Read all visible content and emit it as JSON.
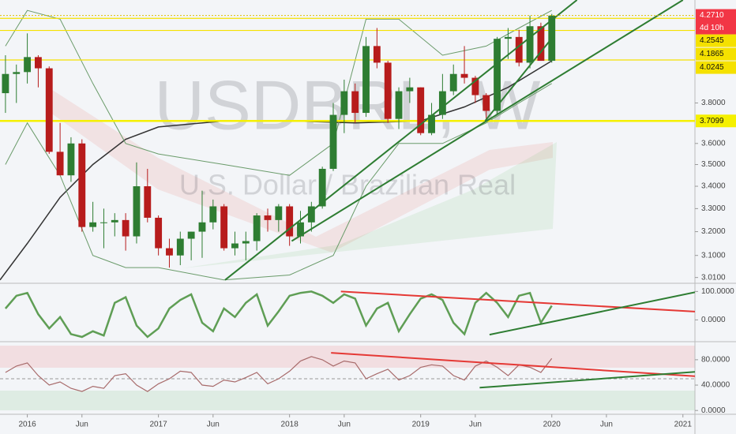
{
  "chart_data": [
    {
      "type": "candlestick",
      "title": "USDBRL, W",
      "subtitle": "U.S. Dollar / Brazilian Real",
      "x": [
        -2,
        -1,
        0,
        1,
        2,
        3,
        4,
        5,
        6,
        7,
        8,
        9,
        10,
        11,
        12,
        13,
        14,
        15,
        16,
        17,
        18,
        19,
        20,
        21,
        22,
        23,
        24,
        25,
        26,
        27,
        28,
        29,
        30,
        31,
        32,
        33,
        34,
        35,
        36,
        37,
        38,
        39,
        40,
        41,
        42,
        43,
        44,
        45,
        46,
        47,
        48
      ],
      "open": [
        3.85,
        3.95,
        3.96,
        4.04,
        3.98,
        3.56,
        3.45,
        3.6,
        3.22,
        3.24,
        3.24,
        3.25,
        3.18,
        3.4,
        3.26,
        3.13,
        3.1,
        3.17,
        3.2,
        3.24,
        3.31,
        3.13,
        3.15,
        3.16,
        3.27,
        3.25,
        3.31,
        3.18,
        3.24,
        3.31,
        3.48,
        3.74,
        3.86,
        3.75,
        4.1,
        4.01,
        3.72,
        3.86,
        3.88,
        3.65,
        3.74,
        3.86,
        3.95,
        3.93,
        3.84,
        3.76,
        4.14,
        4.15,
        4.01,
        4.21,
        4.02
      ],
      "high": [
        4.05,
        4.0,
        4.17,
        4.05,
        3.99,
        3.7,
        3.63,
        3.62,
        3.33,
        3.3,
        3.28,
        3.28,
        3.51,
        3.48,
        3.27,
        3.17,
        3.2,
        3.2,
        3.38,
        3.34,
        3.32,
        3.2,
        3.2,
        3.28,
        3.3,
        3.32,
        3.32,
        3.29,
        3.33,
        3.49,
        3.8,
        3.92,
        3.9,
        4.15,
        4.2,
        4.02,
        3.88,
        3.93,
        3.88,
        3.8,
        3.95,
        4.0,
        4.1,
        3.94,
        3.85,
        4.15,
        4.2,
        4.19,
        4.27,
        4.23,
        4.28
      ],
      "low": [
        3.75,
        3.8,
        3.9,
        3.88,
        3.55,
        3.45,
        3.42,
        3.2,
        3.2,
        3.13,
        3.18,
        3.12,
        3.15,
        3.24,
        3.1,
        3.05,
        3.06,
        3.08,
        3.09,
        3.21,
        3.12,
        3.1,
        3.08,
        3.12,
        3.2,
        3.2,
        3.14,
        3.15,
        3.2,
        3.3,
        3.47,
        3.65,
        3.7,
        3.73,
        3.98,
        3.7,
        3.67,
        3.8,
        3.64,
        3.64,
        3.72,
        3.84,
        3.9,
        3.8,
        3.72,
        3.74,
        4.03,
        3.99,
        3.98,
        4.02,
        4.01
      ],
      "close": [
        3.95,
        3.96,
        4.04,
        3.98,
        3.56,
        3.45,
        3.6,
        3.22,
        3.24,
        3.24,
        3.25,
        3.18,
        3.4,
        3.26,
        3.13,
        3.1,
        3.17,
        3.2,
        3.24,
        3.31,
        3.13,
        3.15,
        3.16,
        3.27,
        3.25,
        3.31,
        3.18,
        3.24,
        3.31,
        3.48,
        3.74,
        3.86,
        3.75,
        4.1,
        4.01,
        3.72,
        3.86,
        3.88,
        3.65,
        3.74,
        3.86,
        3.95,
        3.93,
        3.84,
        3.76,
        4.14,
        4.15,
        4.01,
        4.21,
        4.02,
        4.27
      ],
      "up_color": "#2e7d32",
      "down_color": "#b71c1c",
      "log_scale": true,
      "ylim": [
        2.99,
        4.36
      ],
      "yticks": [
        {
          "value": 3.8,
          "label": "3.8000"
        },
        {
          "value": 3.6,
          "label": "3.6000"
        },
        {
          "value": 3.5,
          "label": "3.5000"
        },
        {
          "value": 3.4,
          "label": "3.4000"
        },
        {
          "value": 3.3,
          "label": "3.3000"
        },
        {
          "value": 3.2,
          "label": "3.2000"
        },
        {
          "value": 3.1,
          "label": "3.1000"
        },
        {
          "value": 3.01,
          "label": "3.0100"
        }
      ],
      "xlim": [
        -2.5,
        61.1
      ],
      "xticks": [
        {
          "value": 0,
          "label": "2016"
        },
        {
          "value": 5,
          "label": "Jun"
        },
        {
          "value": 12,
          "label": "2017"
        },
        {
          "value": 17,
          "label": "Jun"
        },
        {
          "value": 24,
          "label": "2018"
        },
        {
          "value": 29,
          "label": "Jun"
        },
        {
          "value": 36,
          "label": "2019"
        },
        {
          "value": 41,
          "label": "Jun"
        },
        {
          "value": 48,
          "label": "2020"
        },
        {
          "value": 53,
          "label": "Jun"
        },
        {
          "value": 60,
          "label": "2021"
        }
      ],
      "last_price": {
        "value": 4.271,
        "label": "4.2710",
        "countdown": "4d 10h",
        "color": "#f23645"
      },
      "hlines": [
        {
          "value": 4.2545,
          "color": "#f5e100"
        },
        {
          "value": 4.1865,
          "color": "#f5e100"
        },
        {
          "value": 4.0245,
          "color": "#f5e100"
        },
        {
          "value": 3.7099,
          "color": "#f5f000"
        }
      ],
      "series": [
        {
          "color": "#333333",
          "x": [
            -2.5,
            0,
            3,
            6,
            9,
            12,
            18,
            24,
            30,
            36,
            40,
            44,
            48
          ],
          "values": [
            3.0,
            3.15,
            3.35,
            3.5,
            3.62,
            3.68,
            3.71,
            3.71,
            3.7,
            3.71,
            3.78,
            3.88,
            4.02
          ]
        },
        {
          "color": "#6a9b6a",
          "x": [
            -2,
            0,
            3,
            6,
            9,
            12,
            18,
            24,
            28,
            31,
            34,
            38,
            42,
            45,
            48
          ],
          "values": [
            4.1,
            4.3,
            4.25,
            3.9,
            3.6,
            3.55,
            3.5,
            3.45,
            3.6,
            4.25,
            4.25,
            4.05,
            4.1,
            4.2,
            4.3
          ]
        },
        {
          "color": "#6a9b6a",
          "x": [
            -2,
            0,
            3,
            6,
            9,
            12,
            18,
            24,
            28,
            31,
            34,
            38,
            42,
            45,
            48
          ],
          "values": [
            3.5,
            3.7,
            3.45,
            3.1,
            3.05,
            3.05,
            3.0,
            3.02,
            3.1,
            3.4,
            3.6,
            3.6,
            3.7,
            3.8,
            3.9
          ]
        }
      ],
      "trendlines": [
        {
          "color": "#2e7d32",
          "x": [
            18.1,
            50.3
          ],
          "values": [
            3.0,
            4.36
          ]
        },
        {
          "color": "#2e7d32",
          "x": [
            24.2,
            60.0
          ],
          "values": [
            3.16,
            4.36
          ]
        },
        {
          "color": "#2e7d32",
          "x": [
            41.9,
            48.1
          ],
          "values": [
            3.71,
            4.15
          ]
        }
      ]
    },
    {
      "type": "line",
      "color": "#5f9e55",
      "values": [
        40,
        85,
        95,
        20,
        -30,
        10,
        -50,
        -60,
        -40,
        -55,
        60,
        80,
        -20,
        -60,
        -30,
        40,
        70,
        90,
        -10,
        -40,
        40,
        10,
        60,
        90,
        -20,
        30,
        85,
        95,
        100,
        85,
        60,
        90,
        75,
        -20,
        40,
        60,
        -40,
        20,
        75,
        90,
        70,
        -10,
        -50,
        60,
        95,
        60,
        10,
        85,
        95,
        -10,
        50
      ],
      "ylim": [
        -74,
        126
      ],
      "yticks": [
        {
          "value": 100,
          "label": "100.0000"
        },
        {
          "value": 0,
          "label": "0.0000"
        }
      ],
      "trendlines": [
        {
          "color": "#e53935",
          "x": [
            28.7,
            61.1
          ],
          "values": [
            100,
            29
          ]
        },
        {
          "color": "#2e7d32",
          "x": [
            42.3,
            61.1
          ],
          "values": [
            -52,
            97
          ]
        }
      ]
    },
    {
      "type": "line",
      "color": "#a86b6b",
      "values": [
        60,
        70,
        75,
        55,
        40,
        45,
        35,
        30,
        38,
        35,
        55,
        58,
        40,
        30,
        42,
        50,
        62,
        60,
        40,
        38,
        48,
        45,
        52,
        60,
        42,
        50,
        62,
        78,
        85,
        80,
        70,
        78,
        75,
        50,
        58,
        65,
        48,
        55,
        68,
        72,
        70,
        55,
        48,
        70,
        78,
        68,
        55,
        72,
        68,
        60,
        82
      ],
      "ylim": [
        -6,
        106
      ],
      "yticks": [
        {
          "value": 80,
          "label": "80.0000"
        },
        {
          "value": 40,
          "label": "40.0000"
        },
        {
          "value": 0,
          "label": "0.0000"
        }
      ],
      "trendlines": [
        {
          "color": "#e53935",
          "x": [
            27.8,
            61.1
          ],
          "values": [
            91,
            54
          ]
        },
        {
          "color": "#2e7d32",
          "x": [
            41.4,
            61.1
          ],
          "values": [
            36,
            61
          ]
        }
      ]
    }
  ]
}
